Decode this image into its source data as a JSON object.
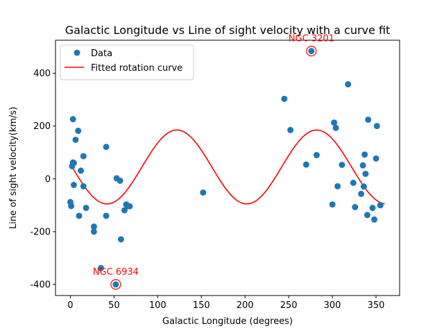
{
  "chart_data": {
    "type": "scatter",
    "title": "Galactic Longitude vs Line of sight velocity with a curve fit",
    "xlabel": "Galactic Longitude (degrees)",
    "ylabel": "Line of sight velocity(km/s)",
    "xlim": [
      -17,
      377
    ],
    "ylim": [
      -442,
      525
    ],
    "xticks": [
      0,
      50,
      100,
      150,
      200,
      250,
      300,
      350
    ],
    "yticks": [
      -400,
      -200,
      0,
      200,
      400
    ],
    "grid": false,
    "legend_position": "top-left",
    "legend": [
      {
        "label": "Data",
        "kind": "marker"
      },
      {
        "label": "Fitted rotation curve",
        "kind": "line"
      }
    ],
    "series": [
      {
        "name": "Data",
        "type": "scatter",
        "color": "#1f77b4",
        "points": [
          [
            0,
            -88
          ],
          [
            1,
            -103
          ],
          [
            2,
            48
          ],
          [
            3,
            226
          ],
          [
            3,
            62
          ],
          [
            4,
            60
          ],
          [
            4,
            -23
          ],
          [
            6,
            148
          ],
          [
            9,
            182
          ],
          [
            10,
            -140
          ],
          [
            12,
            31
          ],
          [
            15,
            86
          ],
          [
            15,
            -28
          ],
          [
            18,
            -110
          ],
          [
            27,
            -181
          ],
          [
            27,
            -200
          ],
          [
            35,
            -338
          ],
          [
            41,
            121
          ],
          [
            41,
            -140
          ],
          [
            52,
            -400
          ],
          [
            53,
            2
          ],
          [
            57,
            -7
          ],
          [
            58,
            -229
          ],
          [
            62,
            -119
          ],
          [
            64,
            -97
          ],
          [
            66,
            -103
          ],
          [
            68,
            -104
          ],
          [
            152,
            -52
          ],
          [
            245,
            303
          ],
          [
            252,
            185
          ],
          [
            270,
            54
          ],
          [
            276,
            484
          ],
          [
            282,
            90
          ],
          [
            300,
            -97
          ],
          [
            302,
            213
          ],
          [
            304,
            193
          ],
          [
            306,
            -28
          ],
          [
            311,
            53
          ],
          [
            318,
            358
          ],
          [
            324,
            -15
          ],
          [
            326,
            -107
          ],
          [
            333,
            -57
          ],
          [
            335,
            51
          ],
          [
            336,
            -29
          ],
          [
            337,
            92
          ],
          [
            338,
            19
          ],
          [
            340,
            -137
          ],
          [
            341,
            224
          ],
          [
            346,
            -110
          ],
          [
            348,
            -154
          ],
          [
            350,
            77
          ],
          [
            351,
            200
          ],
          [
            355,
            -100
          ]
        ]
      },
      {
        "name": "Fitted rotation curve",
        "type": "line",
        "color": "#ff0000",
        "model": {
          "mean": 45,
          "amplitude": 140,
          "period_deg": 160,
          "peak_at_deg": 122,
          "x_range": [
            0,
            360
          ],
          "samples": 181
        }
      }
    ],
    "annotations": [
      {
        "text": "NGC 3201",
        "x": 276,
        "y": 484,
        "color": "#ff0000",
        "label_position": "above"
      },
      {
        "text": "NGC 6934",
        "x": 52,
        "y": -400,
        "color": "#ff0000",
        "label_position": "above"
      }
    ]
  }
}
